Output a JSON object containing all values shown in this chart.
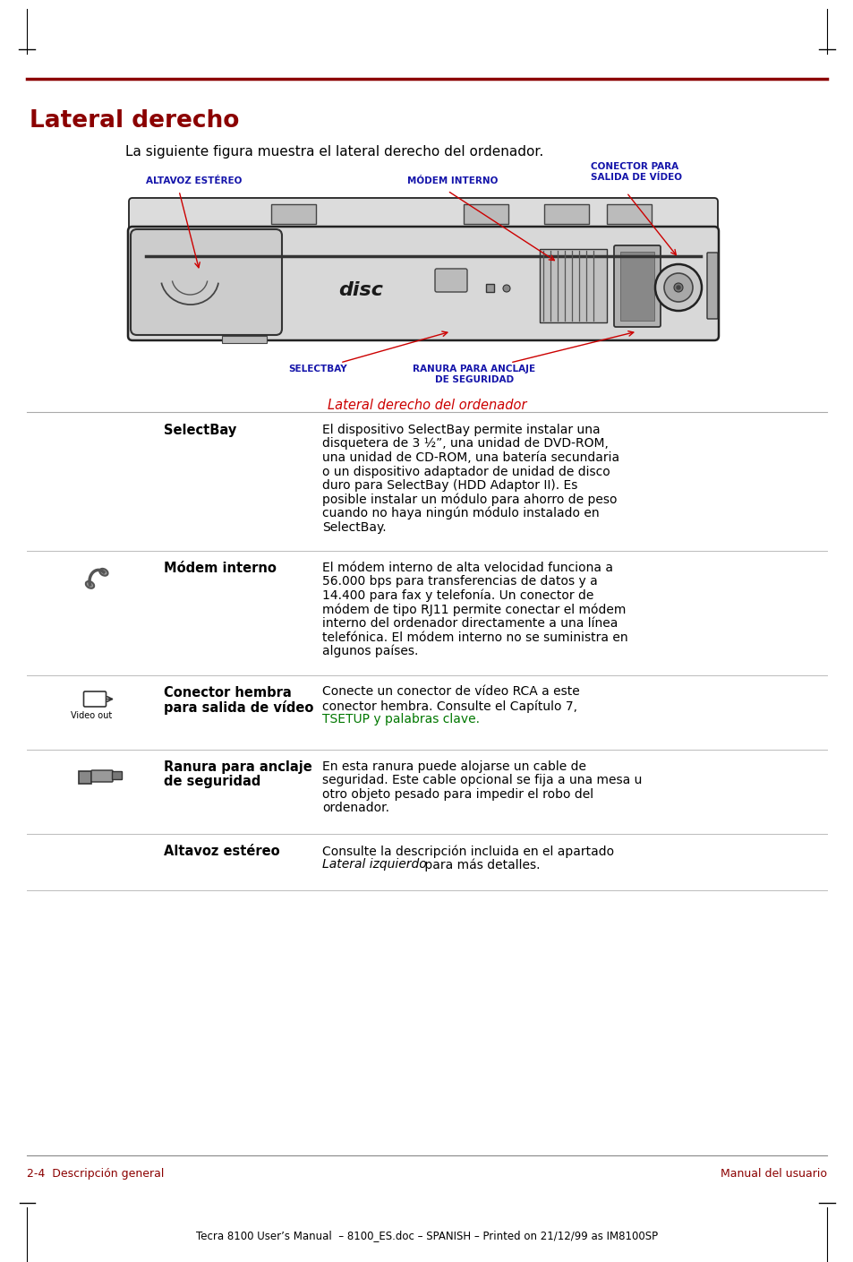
{
  "title": "Lateral derecho",
  "title_color": "#8B0000",
  "bg_color": "#FFFFFF",
  "page_intro": "La siguiente figura muestra el lateral derecho del ordenador.",
  "figure_caption": "Lateral derecho del ordenador",
  "dark_red": "#8B0000",
  "blue_label": "#1414AA",
  "red_line": "#8B0000",
  "arrow_color": "#CC0000",
  "footer_left": "2-4  Descripción general",
  "footer_right": "Manual del usuario",
  "footer_bottom": "Tecra 8100 User’s Manual  – 8100_ES.doc – SPANISH – Printed on 21/12/99 as IM8100SP",
  "tsetup_color": "#007700"
}
